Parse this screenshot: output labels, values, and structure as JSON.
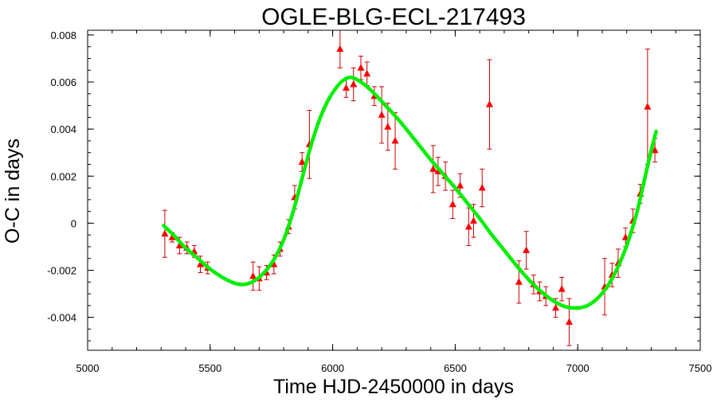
{
  "chart_data": {
    "type": "scatter",
    "title": "OGLE-BLG-ECL-217493",
    "xlabel": "Time HJD-2450000 in days",
    "ylabel": "O-C in days",
    "xlim": [
      5000,
      7500
    ],
    "ylim": [
      -0.0054,
      0.0082
    ],
    "x_ticks": [
      5000,
      5500,
      6000,
      6500,
      7000,
      7500
    ],
    "x_tick_labels": [
      "5000",
      "5500",
      "6000",
      "6500",
      "7000",
      "7500"
    ],
    "y_ticks": [
      -0.004,
      -0.002,
      0,
      0.002,
      0.004,
      0.006,
      0.008
    ],
    "y_tick_labels": [
      "-0.004",
      "-0.002",
      "0",
      "0.002",
      "0.004",
      "0.006",
      "0.008"
    ],
    "x_minor_step": 100,
    "y_minor_step": 0.0005,
    "grid": false,
    "legend": "none",
    "colors": {
      "points": "#ff0000",
      "errorbars": "#cc0000",
      "fit": "#00ee00",
      "axes": "#000000"
    },
    "series": [
      {
        "kind": "points-with-errorbars",
        "marker": "triangle",
        "points": [
          {
            "x": 5315,
            "y": -0.00045,
            "err": 0.001
          },
          {
            "x": 5345,
            "y": -0.0006,
            "err": 0.0002
          },
          {
            "x": 5375,
            "y": -0.00095,
            "err": 0.00035
          },
          {
            "x": 5405,
            "y": -0.00105,
            "err": 0.00025
          },
          {
            "x": 5435,
            "y": -0.0012,
            "err": 0.00025
          },
          {
            "x": 5460,
            "y": -0.00175,
            "err": 0.00035
          },
          {
            "x": 5490,
            "y": -0.0019,
            "err": 0.00025
          },
          {
            "x": 5675,
            "y": -0.00225,
            "err": 0.0006
          },
          {
            "x": 5700,
            "y": -0.00235,
            "err": 0.0005
          },
          {
            "x": 5730,
            "y": -0.0021,
            "err": 0.0003
          },
          {
            "x": 5760,
            "y": -0.00175,
            "err": 0.0004
          },
          {
            "x": 5785,
            "y": -0.0011,
            "err": 0.0003
          },
          {
            "x": 5820,
            "y": -0.00015,
            "err": 0.0003
          },
          {
            "x": 5845,
            "y": 0.0011,
            "err": 0.0005
          },
          {
            "x": 5875,
            "y": 0.0026,
            "err": 0.0004
          },
          {
            "x": 5905,
            "y": 0.00335,
            "err": 0.00145
          },
          {
            "x": 6030,
            "y": 0.0074,
            "err": 0.0008
          },
          {
            "x": 6055,
            "y": 0.00575,
            "err": 0.0004
          },
          {
            "x": 6085,
            "y": 0.0059,
            "err": 0.0007
          },
          {
            "x": 6115,
            "y": 0.0066,
            "err": 0.0005
          },
          {
            "x": 6140,
            "y": 0.00635,
            "err": 0.0005
          },
          {
            "x": 6170,
            "y": 0.0054,
            "err": 0.0004
          },
          {
            "x": 6200,
            "y": 0.0046,
            "err": 0.0012
          },
          {
            "x": 6225,
            "y": 0.0041,
            "err": 0.001
          },
          {
            "x": 6255,
            "y": 0.0035,
            "err": 0.0012
          },
          {
            "x": 6410,
            "y": 0.0023,
            "err": 0.001
          },
          {
            "x": 6430,
            "y": 0.0022,
            "err": 0.0006
          },
          {
            "x": 6460,
            "y": 0.002,
            "err": 0.0006
          },
          {
            "x": 6490,
            "y": 0.0008,
            "err": 0.0006
          },
          {
            "x": 6520,
            "y": 0.0016,
            "err": 0.0005
          },
          {
            "x": 6555,
            "y": -0.00015,
            "err": 0.0008
          },
          {
            "x": 6575,
            "y": 0.0001,
            "err": 0.0007
          },
          {
            "x": 6610,
            "y": 0.0015,
            "err": 0.0008
          },
          {
            "x": 6640,
            "y": 0.00505,
            "err": 0.0019
          },
          {
            "x": 6760,
            "y": -0.0025,
            "err": 0.0009
          },
          {
            "x": 6790,
            "y": -0.00115,
            "err": 0.0008
          },
          {
            "x": 6820,
            "y": -0.0026,
            "err": 0.0004
          },
          {
            "x": 6845,
            "y": -0.0029,
            "err": 0.0004
          },
          {
            "x": 6870,
            "y": -0.0031,
            "err": 0.0004
          },
          {
            "x": 6910,
            "y": -0.0036,
            "err": 0.0004
          },
          {
            "x": 6935,
            "y": -0.0028,
            "err": 0.0005
          },
          {
            "x": 6965,
            "y": -0.0042,
            "err": 0.001
          },
          {
            "x": 7110,
            "y": -0.0027,
            "err": 0.0012
          },
          {
            "x": 7140,
            "y": -0.0022,
            "err": 0.0005
          },
          {
            "x": 7165,
            "y": -0.0017,
            "err": 0.0006
          },
          {
            "x": 7195,
            "y": -0.0006,
            "err": 0.0004
          },
          {
            "x": 7225,
            "y": 0.0001,
            "err": 0.0005
          },
          {
            "x": 7255,
            "y": 0.00125,
            "err": 0.0004
          },
          {
            "x": 7285,
            "y": 0.00495,
            "err": 0.00245
          },
          {
            "x": 7315,
            "y": 0.0031,
            "err": 0.0005
          }
        ]
      },
      {
        "kind": "fit-curve",
        "x": [
          5310,
          5350,
          5400,
          5450,
          5500,
          5550,
          5600,
          5640,
          5680,
          5720,
          5760,
          5800,
          5830,
          5860,
          5890,
          5920,
          5950,
          5980,
          6010,
          6040,
          6070,
          6100,
          6140,
          6180,
          6220,
          6260,
          6300,
          6350,
          6400,
          6450,
          6500,
          6550,
          6600,
          6650,
          6700,
          6750,
          6800,
          6850,
          6900,
          6950,
          7000,
          7040,
          7080,
          7120,
          7160,
          7200,
          7240,
          7270,
          7300,
          7320
        ],
        "y": [
          -0.0001,
          -0.0005,
          -0.00105,
          -0.0015,
          -0.00195,
          -0.0023,
          -0.00255,
          -0.0026,
          -0.00245,
          -0.0021,
          -0.00155,
          -0.0007,
          0.0002,
          0.0013,
          0.0025,
          0.0036,
          0.0045,
          0.0052,
          0.0057,
          0.00605,
          0.0062,
          0.0061,
          0.0058,
          0.0054,
          0.00495,
          0.0045,
          0.004,
          0.00335,
          0.0027,
          0.0021,
          0.0015,
          0.00085,
          0.0002,
          -0.0005,
          -0.00115,
          -0.0018,
          -0.0024,
          -0.0029,
          -0.0033,
          -0.00355,
          -0.0036,
          -0.0035,
          -0.0032,
          -0.0027,
          -0.00195,
          -0.00095,
          0.0004,
          0.00175,
          0.0031,
          0.0039
        ]
      }
    ]
  }
}
